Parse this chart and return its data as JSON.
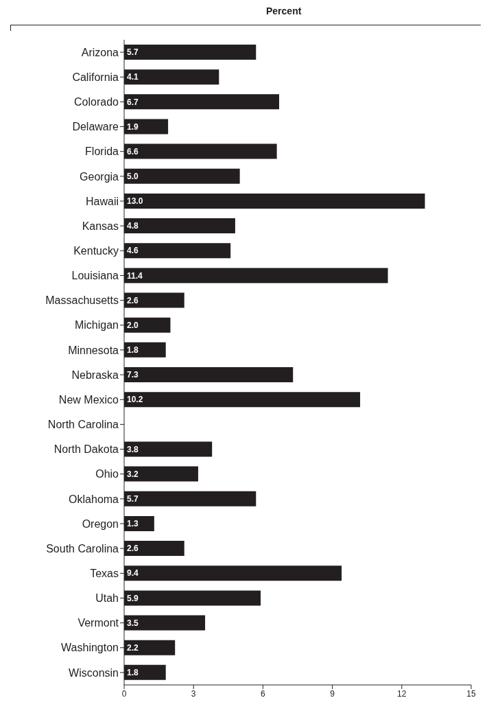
{
  "chart_data": {
    "type": "bar",
    "orientation": "horizontal",
    "title": "Percent",
    "categories": [
      "Arizona",
      "California",
      "Colorado",
      "Delaware",
      "Florida",
      "Georgia",
      "Hawaii",
      "Kansas",
      "Kentucky",
      "Louisiana",
      "Massachusetts",
      "Michigan",
      "Minnesota",
      "Nebraska",
      "New Mexico",
      "North Carolina",
      "North Dakota",
      "Ohio",
      "Oklahoma",
      "Oregon",
      "South Carolina",
      "Texas",
      "Utah",
      "Vermont",
      "Washington",
      "Wisconsin"
    ],
    "values": [
      5.7,
      4.1,
      6.7,
      1.9,
      6.6,
      5.0,
      13.0,
      4.8,
      4.6,
      11.4,
      2.6,
      2.0,
      1.8,
      7.3,
      10.2,
      null,
      3.8,
      3.2,
      5.7,
      1.3,
      2.6,
      9.4,
      5.9,
      3.5,
      2.2,
      1.8
    ],
    "value_labels": [
      "5.7",
      "4.1",
      "6.7",
      "1.9",
      "6.6",
      "5.0",
      "13.0",
      "4.8",
      "4.6",
      "11.4",
      "2.6",
      "2.0",
      "1.8",
      "7.3",
      "10.2",
      null,
      "3.8",
      "3.2",
      "5.7",
      "1.3",
      "2.6",
      "9.4",
      "5.9",
      "3.5",
      "2.2",
      "1.8"
    ],
    "color": "#231f20",
    "xlim": [
      0,
      15
    ],
    "xticks": [
      0,
      3,
      6,
      9,
      12,
      15
    ],
    "grid": false,
    "legend": false
  }
}
